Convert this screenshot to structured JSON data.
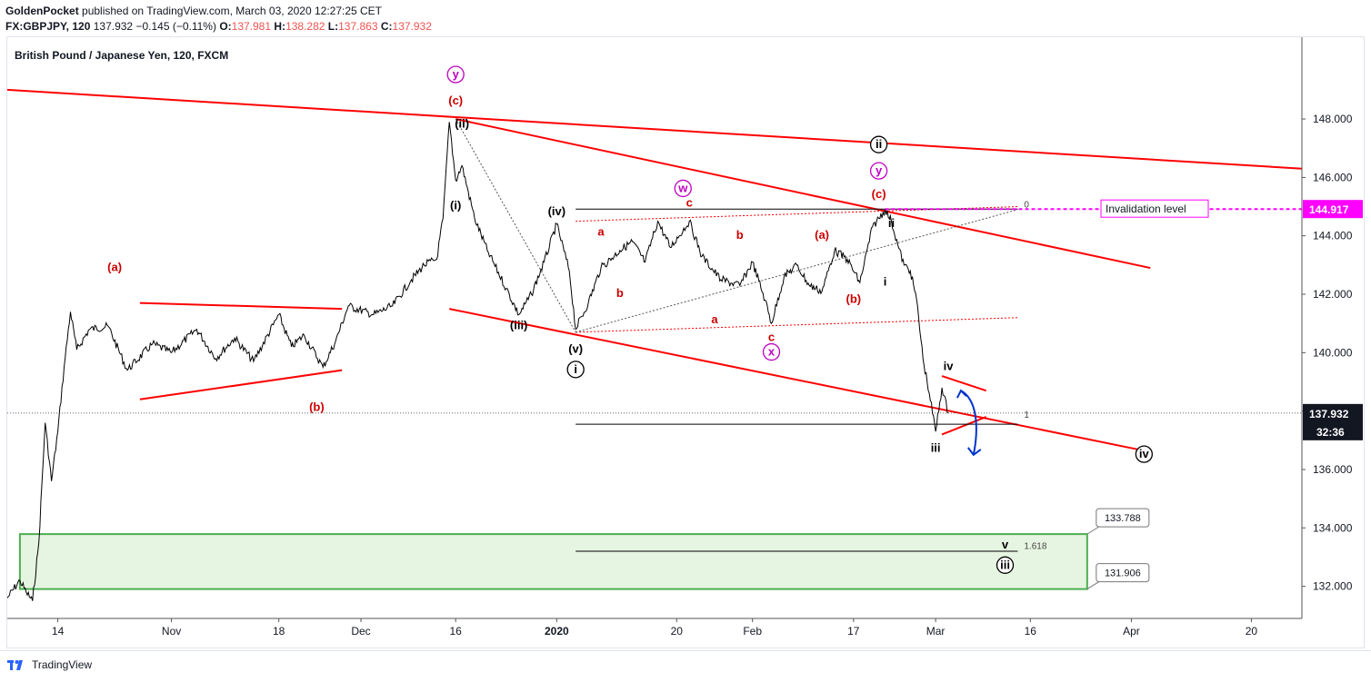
{
  "header": {
    "publisher": "GoldenPocket",
    "published_text": "published on TradingView.com, March 03, 2020 12:27:25 CET",
    "symbol_line": "FX:GBPJPY, 120",
    "last": "137.932",
    "change": "−0.145 (−0.11%)",
    "o_label": "O:",
    "o": "137.981",
    "h_label": "H:",
    "h": "138.282",
    "l_label": "L:",
    "l": "137.863",
    "c_label": "C:",
    "c": "137.932"
  },
  "footer": {
    "brand": "TradingView"
  },
  "colors": {
    "red": "#ff0000",
    "darkred": "#cc0000",
    "purple": "#c000c0",
    "green": "#4caf50",
    "greenfill": "#e6f5e1",
    "blue": "#0033cc",
    "magenta": "#ff00ff"
  },
  "chart_data": {
    "type": "candlestick-line",
    "title": "British Pound / Japanese Yen, 120, FXCM",
    "y_axis": {
      "range": [
        130.9,
        150.8
      ],
      "ticks": [
        "148.000",
        "146.000",
        "144.000",
        "142.000",
        "140.000",
        "138.000",
        "136.000",
        "134.000",
        "132.000"
      ],
      "tick_values": [
        148,
        146,
        144,
        142,
        140,
        138,
        136,
        134,
        132
      ]
    },
    "x_axis": {
      "range": [
        "2019-10-06",
        "2020-04-28"
      ],
      "ticks": [
        {
          "date": "2019-10-14",
          "label": "14",
          "bold": false
        },
        {
          "date": "2019-11-01",
          "label": "Nov",
          "bold": false
        },
        {
          "date": "2019-11-18",
          "label": "18",
          "bold": false
        },
        {
          "date": "2019-12-01",
          "label": "Dec",
          "bold": false
        },
        {
          "date": "2019-12-16",
          "label": "16",
          "bold": false
        },
        {
          "date": "2020-01-01",
          "label": "2020",
          "bold": true
        },
        {
          "date": "2020-01-20",
          "label": "20",
          "bold": false
        },
        {
          "date": "2020-02-01",
          "label": "Feb",
          "bold": false
        },
        {
          "date": "2020-02-17",
          "label": "17",
          "bold": false
        },
        {
          "date": "2020-03-01",
          "label": "Mar",
          "bold": false
        },
        {
          "date": "2020-03-16",
          "label": "16",
          "bold": false
        },
        {
          "date": "2020-04-01",
          "label": "Apr",
          "bold": false
        },
        {
          "date": "2020-04-20",
          "label": "20",
          "bold": false
        }
      ]
    },
    "price_path": [
      [
        "2019-10-06",
        131.6
      ],
      [
        "2019-10-08",
        132.2
      ],
      [
        "2019-10-09",
        131.8
      ],
      [
        "2019-10-10",
        131.5
      ],
      [
        "2019-10-11",
        133.5
      ],
      [
        "2019-10-12",
        137.6
      ],
      [
        "2019-10-13",
        135.6
      ],
      [
        "2019-10-14",
        137.3
      ],
      [
        "2019-10-15",
        139.5
      ],
      [
        "2019-10-16",
        141.4
      ],
      [
        "2019-10-17",
        140.1
      ],
      [
        "2019-10-19",
        140.8
      ],
      [
        "2019-10-22",
        140.9
      ],
      [
        "2019-10-25",
        139.4
      ],
      [
        "2019-10-29",
        140.3
      ],
      [
        "2019-11-01",
        140.0
      ],
      [
        "2019-11-05",
        140.8
      ],
      [
        "2019-11-08",
        139.8
      ],
      [
        "2019-11-11",
        140.5
      ],
      [
        "2019-11-14",
        139.7
      ],
      [
        "2019-11-18",
        141.3
      ],
      [
        "2019-11-20",
        140.2
      ],
      [
        "2019-11-22",
        140.6
      ],
      [
        "2019-11-25",
        139.5
      ],
      [
        "2019-11-27",
        140.4
      ],
      [
        "2019-11-29",
        141.6
      ],
      [
        "2019-12-03",
        141.3
      ],
      [
        "2019-12-06",
        141.6
      ],
      [
        "2019-12-09",
        142.5
      ],
      [
        "2019-12-11",
        143.0
      ],
      [
        "2019-12-13",
        143.2
      ],
      [
        "2019-12-14",
        144.6
      ],
      [
        "2019-12-15",
        147.9
      ],
      [
        "2019-12-16",
        145.9
      ],
      [
        "2019-12-17",
        146.4
      ],
      [
        "2019-12-19",
        144.6
      ],
      [
        "2019-12-21",
        143.5
      ],
      [
        "2019-12-24",
        142.2
      ],
      [
        "2019-12-26",
        141.3
      ],
      [
        "2019-12-28",
        142.0
      ],
      [
        "2019-12-30",
        143.1
      ],
      [
        "2020-01-01",
        144.4
      ],
      [
        "2020-01-03",
        142.8
      ],
      [
        "2020-01-04",
        140.8
      ],
      [
        "2020-01-06",
        141.7
      ],
      [
        "2020-01-08",
        142.9
      ],
      [
        "2020-01-11",
        143.5
      ],
      [
        "2020-01-13",
        143.8
      ],
      [
        "2020-01-15",
        143.1
      ],
      [
        "2020-01-17",
        144.5
      ],
      [
        "2020-01-19",
        143.6
      ],
      [
        "2020-01-22",
        144.5
      ],
      [
        "2020-01-24",
        143.3
      ],
      [
        "2020-01-27",
        142.5
      ],
      [
        "2020-01-30",
        142.3
      ],
      [
        "2020-02-01",
        143.1
      ],
      [
        "2020-02-03",
        141.8
      ],
      [
        "2020-02-04",
        141.0
      ],
      [
        "2020-02-06",
        142.6
      ],
      [
        "2020-02-08",
        143.0
      ],
      [
        "2020-02-10",
        142.3
      ],
      [
        "2020-02-12",
        142.1
      ],
      [
        "2020-02-14",
        143.5
      ],
      [
        "2020-02-16",
        143.2
      ],
      [
        "2020-02-18",
        142.4
      ],
      [
        "2020-02-20",
        144.3
      ],
      [
        "2020-02-22",
        144.9
      ],
      [
        "2020-02-23",
        144.5
      ],
      [
        "2020-02-24",
        143.7
      ],
      [
        "2020-02-25",
        143.0
      ],
      [
        "2020-02-26",
        142.8
      ],
      [
        "2020-02-27",
        141.8
      ],
      [
        "2020-02-28",
        139.8
      ],
      [
        "2020-02-29",
        138.6
      ],
      [
        "2020-03-01",
        137.3
      ],
      [
        "2020-03-02",
        138.8
      ],
      [
        "2020-03-03",
        137.932
      ]
    ],
    "labels": [
      {
        "text": "(a)",
        "date": "2019-10-23",
        "price": 142.8,
        "color": "darkred",
        "style": "plain"
      },
      {
        "text": "(b)",
        "date": "2019-11-24",
        "price": 138.0,
        "color": "darkred",
        "style": "plain"
      },
      {
        "text": "y",
        "date": "2019-12-16",
        "price": 149.4,
        "color": "purple",
        "style": "circle"
      },
      {
        "text": "(c)",
        "date": "2019-12-16",
        "price": 148.5,
        "color": "darkred",
        "style": "plain"
      },
      {
        "text": "(ii)",
        "date": "2019-12-17",
        "price": 147.7,
        "color": "black",
        "style": "plain"
      },
      {
        "text": "(i)",
        "date": "2019-12-16",
        "price": 144.9,
        "color": "black",
        "style": "plain"
      },
      {
        "text": "(iii)",
        "date": "2019-12-26",
        "price": 140.8,
        "color": "black",
        "style": "plain"
      },
      {
        "text": "(iv)",
        "date": "2020-01-01",
        "price": 144.7,
        "color": "black",
        "style": "plain"
      },
      {
        "text": "(v)",
        "date": "2020-01-04",
        "price": 140.0,
        "color": "black",
        "style": "plain"
      },
      {
        "text": "i",
        "date": "2020-01-04",
        "price": 139.3,
        "color": "black",
        "style": "circle"
      },
      {
        "text": "a",
        "date": "2020-01-08",
        "price": 144.0,
        "color": "darkred",
        "style": "plain"
      },
      {
        "text": "b",
        "date": "2020-01-11",
        "price": 141.9,
        "color": "darkred",
        "style": "plain"
      },
      {
        "text": "w",
        "date": "2020-01-21",
        "price": 145.5,
        "color": "purple",
        "style": "circle"
      },
      {
        "text": "c",
        "date": "2020-01-22",
        "price": 145.0,
        "color": "darkred",
        "style": "plain"
      },
      {
        "text": "b",
        "date": "2020-01-30",
        "price": 143.9,
        "color": "darkred",
        "style": "plain"
      },
      {
        "text": "a",
        "date": "2020-01-26",
        "price": 141.0,
        "color": "darkred",
        "style": "plain"
      },
      {
        "text": "c",
        "date": "2020-02-04",
        "price": 140.4,
        "color": "darkred",
        "style": "plain"
      },
      {
        "text": "x",
        "date": "2020-02-04",
        "price": 139.9,
        "color": "purple",
        "style": "circle"
      },
      {
        "text": "(a)",
        "date": "2020-02-12",
        "price": 143.9,
        "color": "darkred",
        "style": "plain"
      },
      {
        "text": "(b)",
        "date": "2020-02-17",
        "price": 141.7,
        "color": "darkred",
        "style": "plain"
      },
      {
        "text": "ii",
        "date": "2020-02-21",
        "price": 147.0,
        "color": "black",
        "style": "circle"
      },
      {
        "text": "y",
        "date": "2020-02-21",
        "price": 146.1,
        "color": "purple",
        "style": "circle"
      },
      {
        "text": "(c)",
        "date": "2020-02-21",
        "price": 145.3,
        "color": "darkred",
        "style": "plain"
      },
      {
        "text": "ii",
        "date": "2020-02-23",
        "price": 144.3,
        "color": "black",
        "style": "plain"
      },
      {
        "text": "i",
        "date": "2020-02-22",
        "price": 142.3,
        "color": "black",
        "style": "plain"
      },
      {
        "text": "iv",
        "date": "2020-03-03",
        "price": 139.4,
        "color": "black",
        "style": "plain"
      },
      {
        "text": "iii",
        "date": "2020-03-01",
        "price": 136.6,
        "color": "black",
        "style": "plain"
      },
      {
        "text": "iv",
        "date": "2020-04-03",
        "price": 136.4,
        "color": "black",
        "style": "circle"
      },
      {
        "text": "v",
        "date": "2020-03-12",
        "price": 133.3,
        "color": "black",
        "style": "plain"
      },
      {
        "text": "iii",
        "date": "2020-03-12",
        "price": 132.6,
        "color": "black",
        "style": "circle"
      }
    ],
    "trendlines": [
      {
        "from": [
          "2019-10-06",
          149.0
        ],
        "to": [
          "2020-04-28",
          146.3
        ],
        "color": "red",
        "width": 2,
        "dash": ""
      },
      {
        "from": [
          "2019-12-16",
          148.0
        ],
        "to": [
          "2020-04-04",
          142.9
        ],
        "color": "red",
        "width": 2,
        "dash": ""
      },
      {
        "from": [
          "2019-12-15",
          141.5
        ],
        "to": [
          "2020-04-04",
          136.6
        ],
        "color": "red",
        "width": 2,
        "dash": ""
      },
      {
        "from": [
          "2019-10-27",
          141.7
        ],
        "to": [
          "2019-11-28",
          141.5
        ],
        "color": "red",
        "width": 2,
        "dash": ""
      },
      {
        "from": [
          "2019-10-27",
          138.4
        ],
        "to": [
          "2019-11-28",
          139.4
        ],
        "color": "red",
        "width": 2,
        "dash": ""
      },
      {
        "from": [
          "2020-01-04",
          144.5
        ],
        "to": [
          "2020-03-14",
          145.0
        ],
        "color": "red",
        "width": 1,
        "dash": "2,2"
      },
      {
        "from": [
          "2020-01-04",
          140.7
        ],
        "to": [
          "2020-03-14",
          141.2
        ],
        "color": "red",
        "width": 1,
        "dash": "2,2"
      },
      {
        "from": [
          "2020-03-02",
          139.2
        ],
        "to": [
          "2020-03-09",
          138.7
        ],
        "color": "red",
        "width": 2,
        "dash": ""
      },
      {
        "from": [
          "2020-03-02",
          137.2
        ],
        "to": [
          "2020-03-09",
          137.8
        ],
        "color": "red",
        "width": 2,
        "dash": ""
      },
      {
        "from": [
          "2019-12-16",
          148.0
        ],
        "to": [
          "2020-01-04",
          140.7
        ],
        "color": "grey",
        "width": 1,
        "dash": "2,2"
      },
      {
        "from": [
          "2020-01-04",
          140.7
        ],
        "to": [
          "2020-03-14",
          144.9
        ],
        "color": "grey",
        "width": 1,
        "dash": "2,2"
      },
      {
        "from": [
          "2020-01-04",
          144.917
        ],
        "to": [
          "2020-03-14",
          144.917
        ],
        "color": "black",
        "width": 1,
        "dash": ""
      },
      {
        "from": [
          "2020-01-04",
          137.55
        ],
        "to": [
          "2020-03-14",
          137.55
        ],
        "color": "black",
        "width": 1,
        "dash": ""
      },
      {
        "from": [
          "2020-01-04",
          133.2
        ],
        "to": [
          "2020-03-14",
          133.2
        ],
        "color": "black",
        "width": 1,
        "dash": ""
      }
    ],
    "fib_labels": [
      {
        "text": "0",
        "date": "2020-03-15",
        "price": 145.1
      },
      {
        "text": "1",
        "date": "2020-03-15",
        "price": 137.9
      },
      {
        "text": "1.618",
        "date": "2020-03-15",
        "price": 133.4
      }
    ],
    "invalidation": {
      "price": 144.917,
      "label": "Invalidation level",
      "value_label": "144.917",
      "from": "2020-02-22"
    },
    "last_price": {
      "price": 137.932,
      "label": "137.932",
      "countdown": "32:36"
    },
    "zone": {
      "from": "2019-10-08",
      "to": "2020-03-25",
      "top": 133.788,
      "bottom": 131.906,
      "top_label": "133.788",
      "bottom_label": "131.906"
    },
    "projection_arrow": {
      "from": [
        "2020-03-05",
        138.7
      ],
      "to": [
        "2020-03-07",
        136.5
      ]
    }
  }
}
